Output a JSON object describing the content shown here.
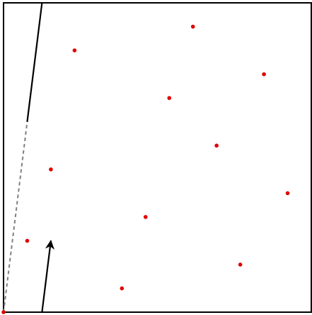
{
  "diagram": {
    "colors": {
      "frame": "#000000",
      "point": "#e00000",
      "dashed_line": "#808080",
      "arrow": "#000000"
    },
    "points": [
      {
        "x": 0.0,
        "y": 0.0
      },
      {
        "x": 0.0769,
        "y": 0.2308
      },
      {
        "x": 0.1538,
        "y": 0.4615
      },
      {
        "x": 0.2308,
        "y": 0.8462
      },
      {
        "x": 0.3846,
        "y": 0.0769
      },
      {
        "x": 0.4615,
        "y": 0.3077
      },
      {
        "x": 0.5385,
        "y": 0.6923
      },
      {
        "x": 0.6154,
        "y": 0.9231
      },
      {
        "x": 0.6923,
        "y": 0.5385
      },
      {
        "x": 0.7692,
        "y": 0.1538
      },
      {
        "x": 0.8462,
        "y": 0.7692
      },
      {
        "x": 0.9231,
        "y": 0.3846
      }
    ],
    "dashed_segment": {
      "from": [
        0.0,
        0.0
      ],
      "to": [
        0.0769,
        0.6154
      ]
    },
    "solid_segment": {
      "from": [
        0.0769,
        0.6154
      ],
      "to": [
        0.125,
        1.0
      ]
    },
    "arrow_segment": {
      "from": [
        0.125,
        0.0
      ],
      "to": [
        0.1538,
        0.2308
      ]
    }
  }
}
